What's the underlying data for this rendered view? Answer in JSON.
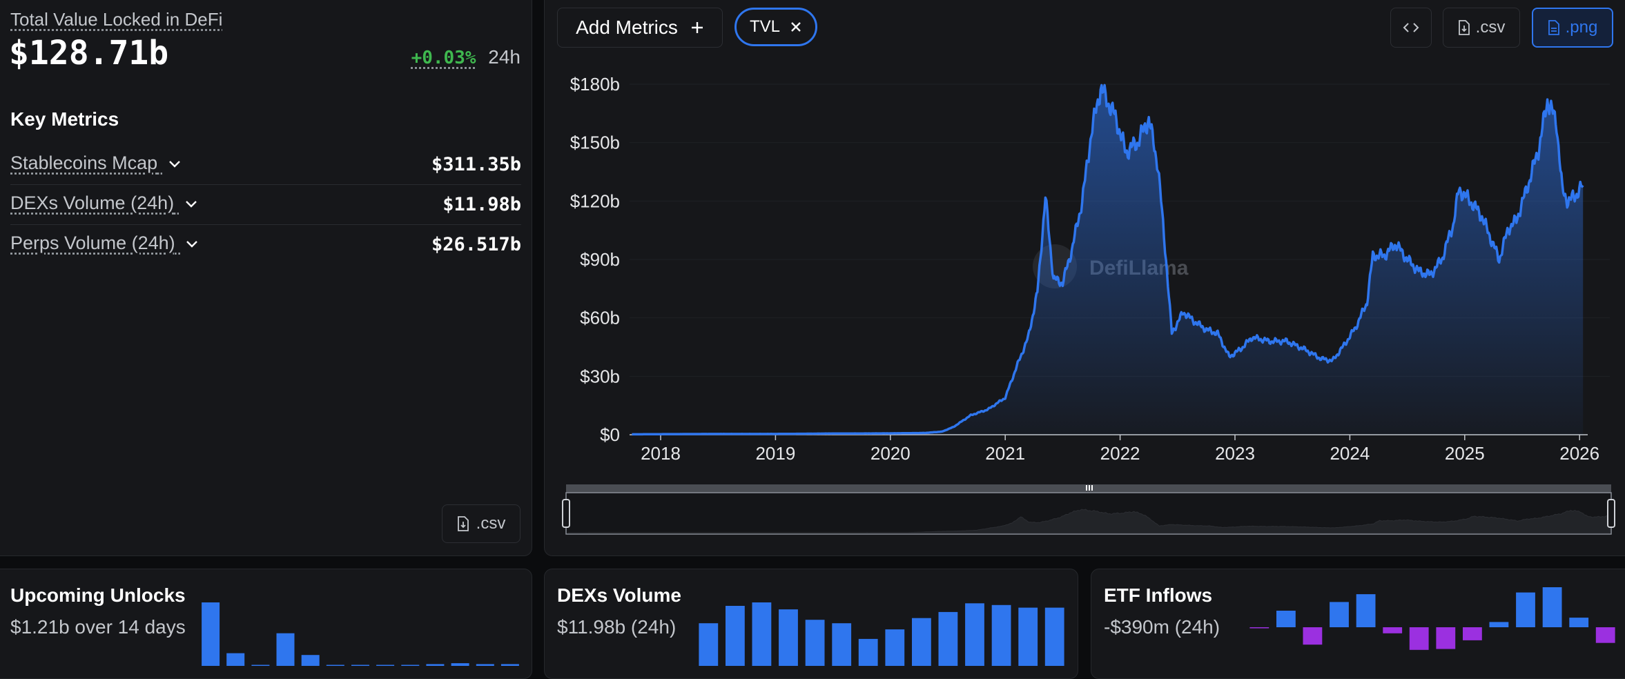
{
  "tvl_panel": {
    "title": "Total Value Locked in DeFi",
    "value": "$128.71b",
    "change": "+0.03%",
    "change_period": "24h",
    "change_color": "#3fb84f",
    "key_metrics_heading": "Key Metrics",
    "metrics": [
      {
        "label": "Stablecoins Mcap",
        "value": "$311.35b"
      },
      {
        "label": "DEXs Volume (24h)",
        "value": "$11.98b"
      },
      {
        "label": "Perps Volume (24h)",
        "value": "$26.517b"
      }
    ],
    "csv_label": ".csv"
  },
  "toolbar": {
    "add_metrics_label": "Add Metrics",
    "active_metric": "TVL",
    "embed_icon": "code-icon",
    "csv_label": ".csv",
    "png_label": ".png",
    "accent": "#2f76ee"
  },
  "watermark": "DefiLlama",
  "chart_data": {
    "type": "area",
    "title": "",
    "xlabel": "",
    "ylabel": "",
    "y_ticks": [
      "$0",
      "$30b",
      "$60b",
      "$90b",
      "$120b",
      "$150b",
      "$180b"
    ],
    "x_ticks": [
      "2018",
      "2019",
      "2020",
      "2021",
      "2022",
      "2023",
      "2024",
      "2025",
      "2026"
    ],
    "ylim": [
      0,
      180
    ],
    "y_unit": "billion USD",
    "line_color": "#2f76ee",
    "series": [
      {
        "name": "TVL",
        "points": [
          [
            2017.75,
            0.2
          ],
          [
            2018.0,
            0.3
          ],
          [
            2018.5,
            0.4
          ],
          [
            2019.0,
            0.4
          ],
          [
            2019.5,
            0.6
          ],
          [
            2020.0,
            0.7
          ],
          [
            2020.3,
            0.9
          ],
          [
            2020.45,
            1.6
          ],
          [
            2020.55,
            4
          ],
          [
            2020.7,
            10
          ],
          [
            2020.85,
            13
          ],
          [
            2021.0,
            19
          ],
          [
            2021.1,
            35
          ],
          [
            2021.2,
            50
          ],
          [
            2021.28,
            73
          ],
          [
            2021.35,
            122
          ],
          [
            2021.42,
            80
          ],
          [
            2021.5,
            78
          ],
          [
            2021.58,
            95
          ],
          [
            2021.67,
            120
          ],
          [
            2021.75,
            155
          ],
          [
            2021.83,
            178
          ],
          [
            2021.9,
            170
          ],
          [
            2021.96,
            163
          ],
          [
            2022.05,
            145
          ],
          [
            2022.15,
            150
          ],
          [
            2022.25,
            162
          ],
          [
            2022.33,
            138
          ],
          [
            2022.4,
            90
          ],
          [
            2022.45,
            52
          ],
          [
            2022.55,
            63
          ],
          [
            2022.65,
            58
          ],
          [
            2022.75,
            54
          ],
          [
            2022.85,
            52
          ],
          [
            2022.95,
            40
          ],
          [
            2023.05,
            44
          ],
          [
            2023.15,
            50
          ],
          [
            2023.3,
            48
          ],
          [
            2023.45,
            48
          ],
          [
            2023.6,
            44
          ],
          [
            2023.75,
            39
          ],
          [
            2023.85,
            38
          ],
          [
            2023.95,
            46
          ],
          [
            2024.05,
            55
          ],
          [
            2024.15,
            68
          ],
          [
            2024.2,
            92
          ],
          [
            2024.3,
            92
          ],
          [
            2024.4,
            98
          ],
          [
            2024.5,
            90
          ],
          [
            2024.6,
            84
          ],
          [
            2024.7,
            82
          ],
          [
            2024.8,
            90
          ],
          [
            2024.9,
            108
          ],
          [
            2024.95,
            126
          ],
          [
            2025.05,
            120
          ],
          [
            2025.15,
            112
          ],
          [
            2025.3,
            90
          ],
          [
            2025.38,
            106
          ],
          [
            2025.45,
            110
          ],
          [
            2025.55,
            128
          ],
          [
            2025.65,
            148
          ],
          [
            2025.72,
            172
          ],
          [
            2025.8,
            160
          ],
          [
            2025.85,
            125
          ],
          [
            2025.9,
            120
          ],
          [
            2025.95,
            122
          ],
          [
            2026.03,
            128
          ]
        ]
      }
    ]
  },
  "cards": {
    "unlocks": {
      "title": "Upcoming Unlocks",
      "subtitle": "$1.21b over 14 days",
      "bars": [
        70,
        14,
        1,
        36,
        12,
        0,
        0,
        0,
        0,
        2,
        3,
        2,
        2
      ]
    },
    "dex_volume": {
      "title": "DEXs Volume",
      "subtitle": "$11.98b (24h)",
      "bars": [
        49,
        69,
        73,
        65,
        53,
        49,
        31,
        42,
        55,
        62,
        72,
        70,
        67,
        67
      ]
    },
    "etf_inflows": {
      "title": "ETF Inflows",
      "subtitle": "-$390m (24h)",
      "positive_color": "#2f76ee",
      "negative_color": "#9b30e0",
      "bars": [
        -1,
        19,
        -20,
        29,
        38,
        -7,
        -26,
        -25,
        -15,
        6,
        40,
        46,
        11,
        -18
      ]
    }
  }
}
